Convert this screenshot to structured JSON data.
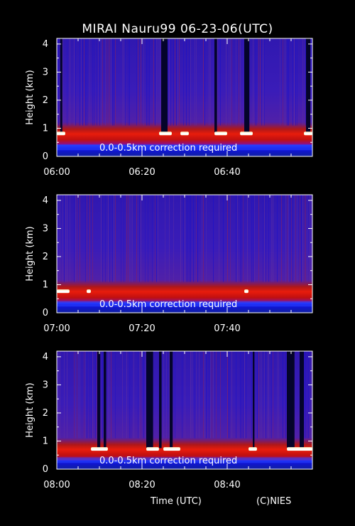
{
  "title": "MIRAI Nauru99 06-23-06(UTC)",
  "footer": {
    "xlabel": "Time (UTC)",
    "credit": "(C)NIES"
  },
  "colors": {
    "background": "#000000",
    "low_signal": "#1a0fd0",
    "high_signal": "#e01010",
    "cloud": "#ffffff"
  },
  "chart_data": [
    {
      "type": "heatmap",
      "ylabel": "Height (km)",
      "yticks": [
        "0",
        "1",
        "2",
        "3",
        "4"
      ],
      "ylim": [
        0,
        4.2
      ],
      "xticks": [
        "06:00",
        "06:20",
        "06:40"
      ],
      "xlim_minutes": [
        0,
        60
      ],
      "annotation": "0.0-0.5km correction required",
      "cloud_base_km": 0.8,
      "signal_gaps_min": [
        [
          0.8,
          1.3
        ],
        [
          24.5,
          26.0
        ],
        [
          37.0,
          37.6
        ],
        [
          44.0,
          45.2
        ],
        [
          58.5,
          59.5
        ]
      ],
      "cloud_events_min": [
        [
          0,
          2
        ],
        [
          24,
          27
        ],
        [
          29,
          31
        ],
        [
          37,
          40
        ],
        [
          43,
          46
        ],
        [
          58,
          61
        ]
      ]
    },
    {
      "type": "heatmap",
      "ylabel": "Height (km)",
      "yticks": [
        "0",
        "1",
        "2",
        "3",
        "4"
      ],
      "ylim": [
        0,
        4.2
      ],
      "xticks": [
        "07:00",
        "07:20",
        "07:40"
      ],
      "xlim_minutes": [
        0,
        60
      ],
      "annotation": "0.0-0.5km correction required",
      "cloud_base_km": 0.75,
      "signal_gaps_min": [],
      "cloud_events_min": [
        [
          0,
          3
        ],
        [
          7,
          8
        ],
        [
          44,
          45
        ]
      ]
    },
    {
      "type": "heatmap",
      "ylabel": "Height (km)",
      "yticks": [
        "0",
        "1",
        "2",
        "3",
        "4"
      ],
      "ylim": [
        0,
        4.2
      ],
      "xticks": [
        "08:00",
        "08:20",
        "08:40"
      ],
      "xlim_minutes": [
        0,
        60
      ],
      "annotation": "0.0-0.5km correction required",
      "cloud_base_km": 0.7,
      "signal_gaps_min": [
        [
          9.5,
          10.2
        ],
        [
          11.0,
          11.6
        ],
        [
          21.0,
          22.6
        ],
        [
          24.0,
          24.6
        ],
        [
          26.5,
          27.2
        ],
        [
          46.0,
          46.4
        ],
        [
          54.0,
          55.8
        ],
        [
          57.0,
          58.0
        ]
      ],
      "cloud_events_min": [
        [
          8,
          12
        ],
        [
          21,
          24
        ],
        [
          25,
          29
        ],
        [
          45,
          47
        ],
        [
          54,
          61
        ]
      ]
    }
  ]
}
